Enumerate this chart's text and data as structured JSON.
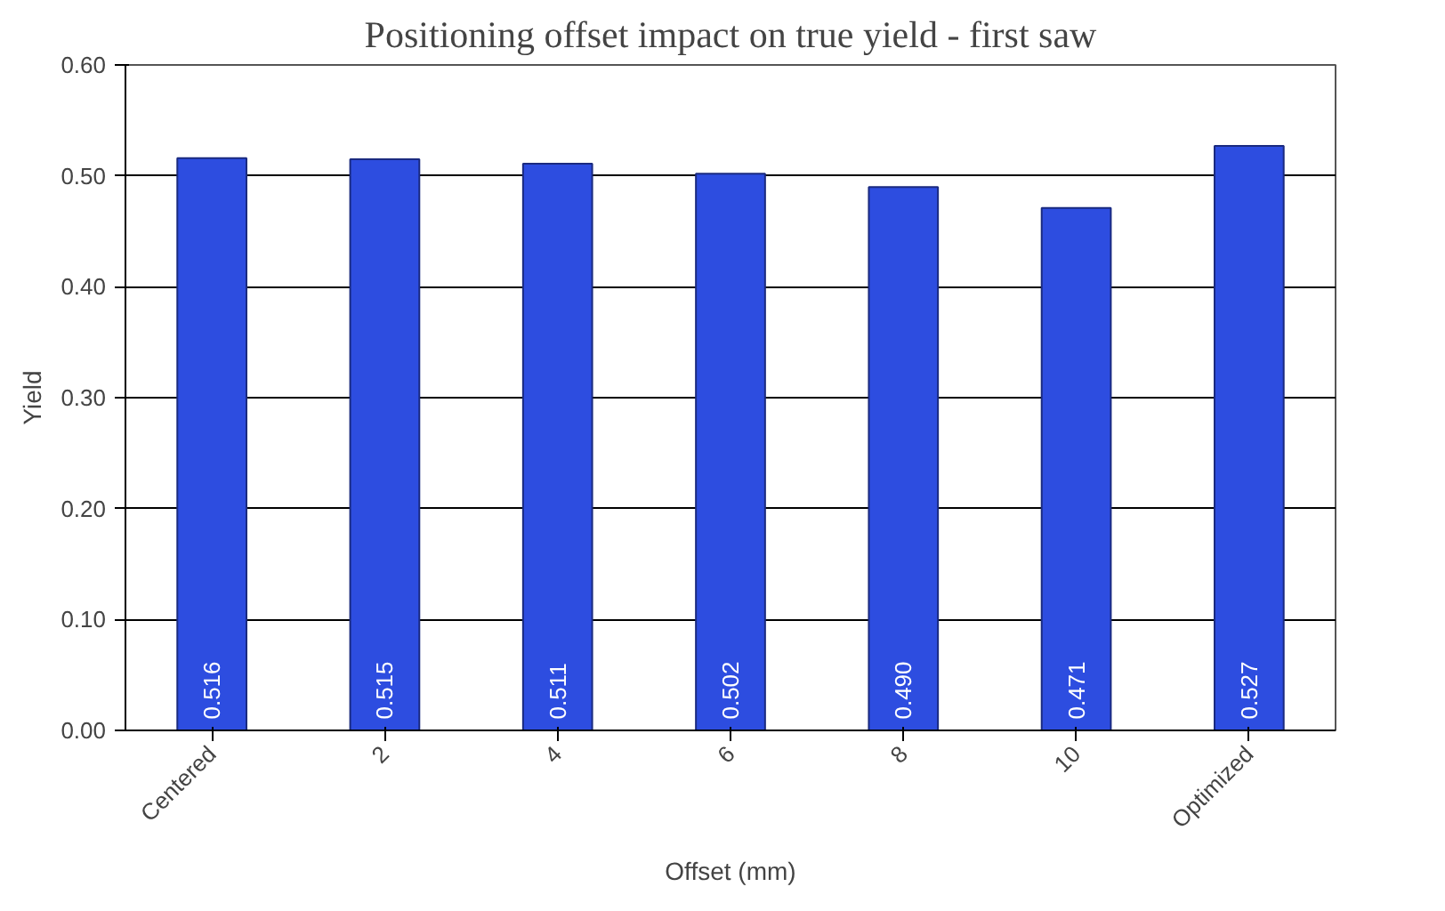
{
  "chart_data": {
    "type": "bar",
    "title": "Positioning offset impact on true yield - first saw",
    "xlabel": "Offset (mm)",
    "ylabel": "Yield",
    "categories": [
      "Centered",
      "2",
      "4",
      "6",
      "8",
      "10",
      "Optimized"
    ],
    "values": [
      0.516,
      0.515,
      0.511,
      0.502,
      0.49,
      0.471,
      0.527
    ],
    "color": "#2d4de0",
    "value_labels": [
      "0.516",
      "0.515",
      "0.511",
      "0.502",
      "0.490",
      "0.471",
      "0.527"
    ],
    "ylim": [
      0,
      0.6
    ],
    "yticks": [
      {
        "value": 0,
        "label": "0.00"
      },
      {
        "value": 0.1,
        "label": "0.10"
      },
      {
        "value": 0.2,
        "label": "0.20"
      },
      {
        "value": 0.3,
        "label": "0.30"
      },
      {
        "value": 0.4,
        "label": "0.40"
      },
      {
        "value": 0.5,
        "label": "0.50"
      },
      {
        "value": 0.6,
        "label": "0.60"
      }
    ],
    "grid": "y"
  }
}
